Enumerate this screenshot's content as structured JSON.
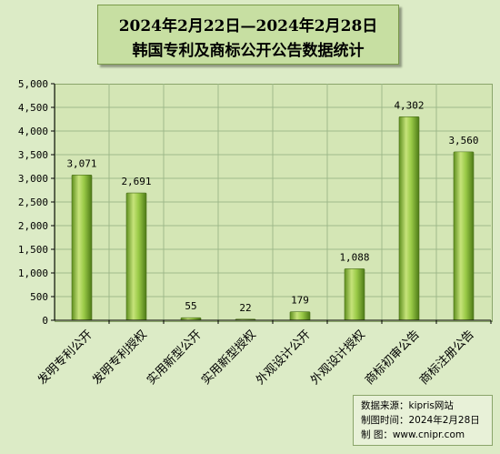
{
  "chart_data": {
    "type": "bar",
    "title": "2024年2月22日—2024年2月28日",
    "subtitle": "韩国专利及商标公开公告数据统计",
    "categories": [
      "发明专利公开",
      "发明专利授权",
      "实用新型公开",
      "实用新型授权",
      "外观设计公开",
      "外观设计授权",
      "商标初审公告",
      "商标注册公告"
    ],
    "values": [
      3071,
      2691,
      55,
      22,
      179,
      1088,
      4302,
      3560
    ],
    "value_labels": [
      "3,071",
      "2,691",
      "55",
      "22",
      "179",
      "1,088",
      "4,302",
      "3,560"
    ],
    "y_ticks": [
      "0",
      "500",
      "1,000",
      "1,500",
      "2,000",
      "2,500",
      "3,000",
      "3,500",
      "4,000",
      "4,500",
      "5,000"
    ],
    "ylim": [
      0,
      5000
    ],
    "grid": true,
    "legend": "none",
    "bar_color": "#8cbf3c",
    "xlabel": "",
    "ylabel": ""
  },
  "source": {
    "line1": "数据来源：kipris网站",
    "line2": "制图时间：2024年2月28日",
    "line3": "制      图：www.cnipr.com"
  }
}
